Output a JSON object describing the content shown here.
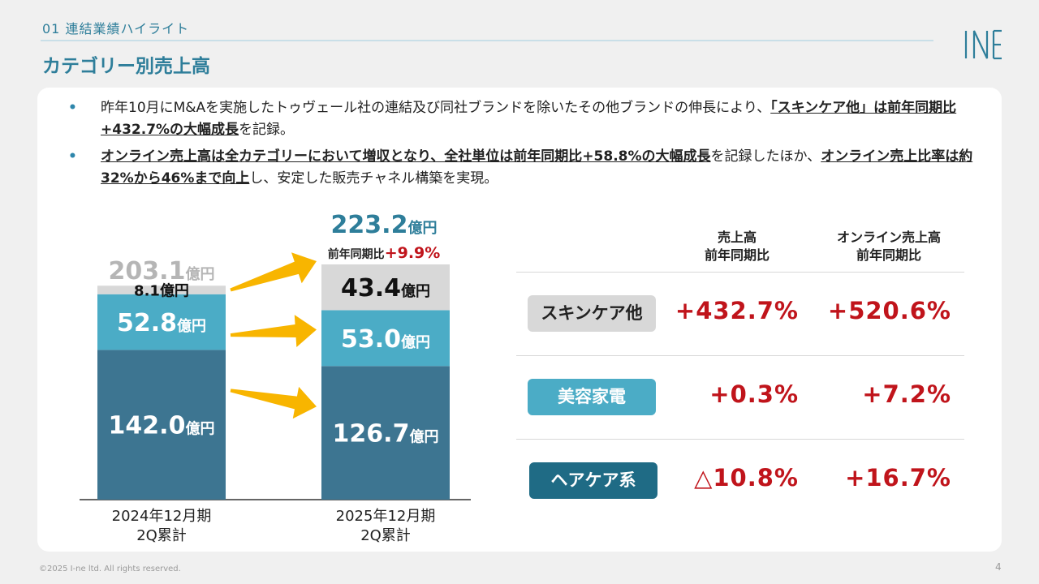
{
  "header": {
    "section": "01 連結業績ハイライト",
    "title": "カテゴリー別売上高",
    "logo": "I-ne"
  },
  "bullets": [
    {
      "pre": "昨年10月にM&Aを実施したトゥヴェール社の連結及び同社ブランドを除いたその他ブランドの伸長により、",
      "b1": "「スキンケア他」は前年同期比+432.7%の大幅成長",
      "mid": "を記録。",
      "b2": "",
      "post": ""
    },
    {
      "pre": "",
      "b1": "オンライン売上高は全カテゴリーにおいて増収となり、全社単位は前年同期比+58.8%の大幅成長",
      "mid": "を記録したほか、",
      "b2": "オンライン売上比率は約32%から46%まで向上",
      "post": "し、安定した販売チャネル構築を実現。"
    }
  ],
  "chart_data": {
    "type": "bar",
    "stacked": true,
    "unit": "億円",
    "categories": [
      "2024年12月期\n2Q累計",
      "2025年12月期\n2Q累計"
    ],
    "series": [
      {
        "name": "ヘアケア系",
        "values": [
          142.0,
          126.7
        ],
        "labels": [
          "142.0",
          "126.7"
        ],
        "color": "#3d7591"
      },
      {
        "name": "美容家電",
        "values": [
          52.8,
          53.0
        ],
        "labels": [
          "52.8",
          "53.0"
        ],
        "color": "#4bacc6"
      },
      {
        "name": "スキンケア他",
        "values": [
          8.1,
          43.4
        ],
        "labels": [
          "8.1",
          "43.4"
        ],
        "color": "#d8d8d8"
      }
    ],
    "totals": [
      {
        "value": "203.1",
        "unit": "億円"
      },
      {
        "value": "223.2",
        "unit": "億円"
      }
    ],
    "growth": {
      "label": "前年同期比",
      "value": "+9.9%"
    },
    "ymax": 240
  },
  "table": {
    "headers": [
      [
        "売上高",
        "前年同期比"
      ],
      [
        "オンライン売上高",
        "前年同期比"
      ]
    ],
    "rows": [
      {
        "category": "スキンケア他",
        "sales": "+432.7%",
        "online": "+520.6%",
        "bg": "#d8d8d8",
        "fg": "#222222"
      },
      {
        "category": "美容家電",
        "sales": "+0.3%",
        "online": "+7.2%",
        "bg": "#4bacc6",
        "fg": "#ffffff"
      },
      {
        "category": "ヘアケア系",
        "sales": "△10.8%",
        "online": "+16.7%",
        "bg": "#1f6b85",
        "fg": "#ffffff"
      }
    ]
  },
  "footer": {
    "copyright": "©2025 I-ne ltd. All rights reserved.",
    "page": "4"
  }
}
